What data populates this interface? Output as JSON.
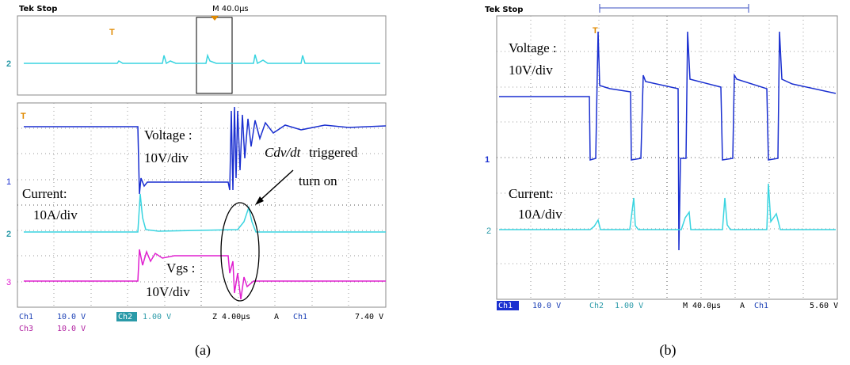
{
  "panel_a": {
    "status": "Tek Stop",
    "timebase": "M 40.0µs",
    "markers": [
      "T",
      "1",
      "2",
      "3"
    ],
    "annotations": [
      "Voltage :",
      "10V/div",
      "Cdv/dt",
      "triggered",
      "turn on",
      "Current:",
      "10A/div",
      "Vgs :",
      "10V/div"
    ],
    "readout": [
      "Ch1",
      "10.0 V",
      "Ch2",
      "1.00 V",
      "Z 4.00µs",
      "A",
      "Ch1",
      "7.40 V",
      "Ch3",
      "10.0 V"
    ],
    "caption": "(a)"
  },
  "panel_b": {
    "status": "Tek Stop",
    "markers": [
      "T",
      "1",
      "2"
    ],
    "annotations": [
      "Voltage :",
      "10V/div",
      "Current:",
      "10A/div"
    ],
    "readout": [
      "Ch1",
      "10.0 V",
      "Ch2",
      "1.00 V",
      "M 40.0µs",
      "A",
      "Ch1",
      "5.60 V"
    ],
    "caption": "(b)"
  }
}
